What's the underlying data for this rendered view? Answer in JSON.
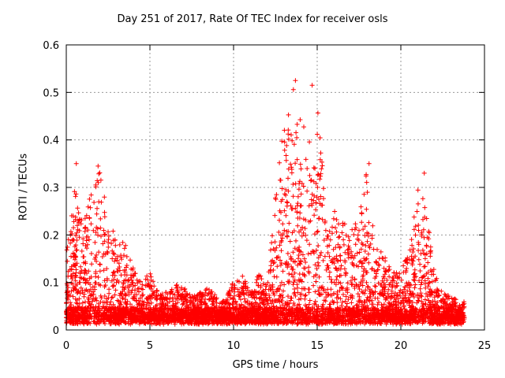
{
  "chart_data": {
    "type": "scatter",
    "title": "Day 251 of 2017, Rate Of TEC Index for receiver osls",
    "xlabel": "GPS time / hours",
    "ylabel": "ROTI / TECUs",
    "xlim": [
      0,
      25
    ],
    "ylim": [
      0,
      0.6
    ],
    "xticks": [
      0,
      5,
      10,
      15,
      20,
      25
    ],
    "yticks": [
      0,
      0.1,
      0.2,
      0.3,
      0.4,
      0.5,
      0.6
    ],
    "ytick_labels": [
      "0",
      "0.1",
      "0.2",
      "0.3",
      "0.4",
      "0.5",
      "0.6"
    ],
    "grid": true,
    "marker": "+",
    "series_color": "#ff0000",
    "x_range_of_data": [
      0,
      23.8
    ],
    "envelope": {
      "description": "approximate upper envelope of ROTI values per hour interval",
      "x": [
        0,
        0.5,
        1,
        1.5,
        2,
        2.5,
        3,
        3.5,
        4,
        4.5,
        5,
        5.5,
        6,
        6.5,
        7,
        7.5,
        8,
        8.5,
        9,
        9.5,
        10,
        10.5,
        11,
        11.5,
        12,
        12.5,
        13,
        13.5,
        14,
        14.5,
        15,
        15.5,
        16,
        16.5,
        17,
        17.5,
        18,
        18.5,
        19,
        19.5,
        20,
        20.5,
        21,
        21.5,
        22,
        22.5,
        23,
        23.5
      ],
      "y": [
        0.17,
        0.3,
        0.23,
        0.3,
        0.34,
        0.25,
        0.18,
        0.19,
        0.13,
        0.11,
        0.12,
        0.08,
        0.08,
        0.1,
        0.09,
        0.07,
        0.08,
        0.09,
        0.07,
        0.06,
        0.11,
        0.12,
        0.08,
        0.12,
        0.1,
        0.28,
        0.45,
        0.52,
        0.45,
        0.4,
        0.5,
        0.25,
        0.26,
        0.23,
        0.22,
        0.24,
        0.35,
        0.2,
        0.16,
        0.12,
        0.13,
        0.16,
        0.33,
        0.27,
        0.12,
        0.08,
        0.07,
        0.06
      ]
    },
    "notable_points": [
      {
        "x": 0.6,
        "y": 0.35
      },
      {
        "x": 1.9,
        "y": 0.345
      },
      {
        "x": 13.7,
        "y": 0.525
      },
      {
        "x": 14.7,
        "y": 0.515
      },
      {
        "x": 18.1,
        "y": 0.35
      },
      {
        "x": 21.4,
        "y": 0.33
      }
    ]
  }
}
